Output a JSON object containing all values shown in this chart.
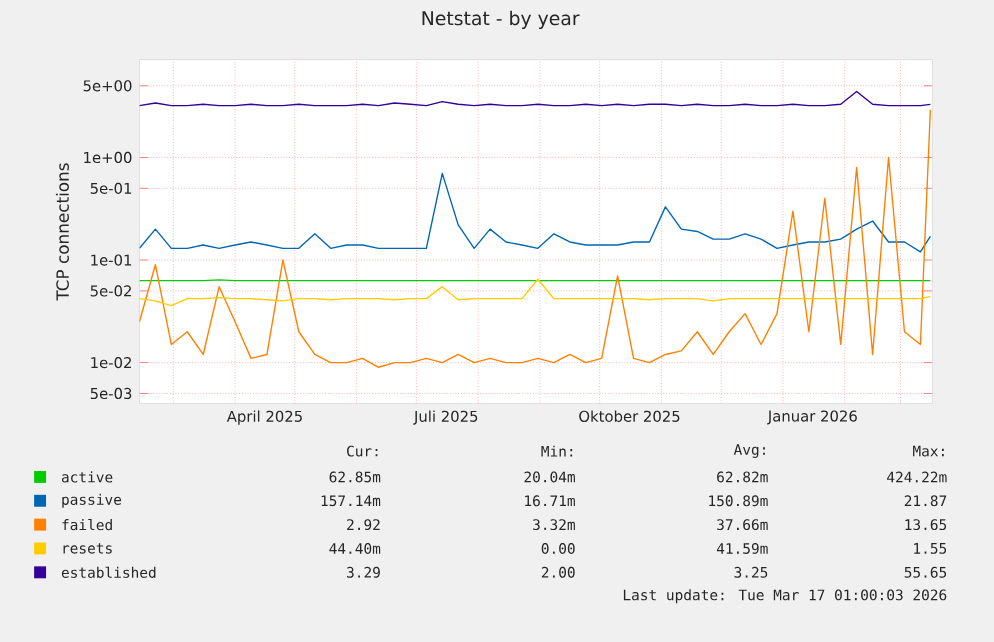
{
  "chart_data": {
    "type": "line",
    "title": "Netstat - by year",
    "ylabel": "TCP connections",
    "x": [
      "2025-02-12",
      "2025-02-20",
      "2025-02-28",
      "2025-03-08",
      "2025-03-16",
      "2025-03-24",
      "2025-04-01",
      "2025-04-09",
      "2025-04-17",
      "2025-04-25",
      "2025-05-03",
      "2025-05-11",
      "2025-05-19",
      "2025-05-27",
      "2025-06-04",
      "2025-06-12",
      "2025-06-20",
      "2025-06-28",
      "2025-07-06",
      "2025-07-14",
      "2025-07-22",
      "2025-07-30",
      "2025-08-07",
      "2025-08-15",
      "2025-08-23",
      "2025-08-31",
      "2025-09-08",
      "2025-09-16",
      "2025-09-24",
      "2025-10-02",
      "2025-10-10",
      "2025-10-18",
      "2025-10-26",
      "2025-11-03",
      "2025-11-11",
      "2025-11-19",
      "2025-11-27",
      "2025-12-05",
      "2025-12-13",
      "2025-12-21",
      "2025-12-29",
      "2026-01-06",
      "2026-01-14",
      "2026-01-22",
      "2026-01-30",
      "2026-02-07",
      "2026-02-15",
      "2026-02-23",
      "2026-03-03",
      "2026-03-11",
      "2026-03-16"
    ],
    "series": [
      {
        "name": "active",
        "color": "#00cc00",
        "values": [
          0.063,
          0.063,
          0.063,
          0.063,
          0.063,
          0.064,
          0.063,
          0.063,
          0.063,
          0.063,
          0.063,
          0.063,
          0.063,
          0.063,
          0.063,
          0.063,
          0.063,
          0.063,
          0.063,
          0.063,
          0.063,
          0.063,
          0.063,
          0.063,
          0.063,
          0.063,
          0.063,
          0.063,
          0.063,
          0.063,
          0.063,
          0.063,
          0.063,
          0.063,
          0.063,
          0.063,
          0.063,
          0.063,
          0.063,
          0.063,
          0.063,
          0.063,
          0.063,
          0.063,
          0.063,
          0.063,
          0.063,
          0.063,
          0.063,
          0.063,
          0.063
        ]
      },
      {
        "name": "passive",
        "color": "#0066b3",
        "values": [
          0.13,
          0.2,
          0.13,
          0.13,
          0.14,
          0.13,
          0.14,
          0.15,
          0.14,
          0.13,
          0.13,
          0.18,
          0.13,
          0.14,
          0.14,
          0.13,
          0.13,
          0.13,
          0.13,
          0.7,
          0.22,
          0.13,
          0.2,
          0.15,
          0.14,
          0.13,
          0.18,
          0.15,
          0.14,
          0.14,
          0.14,
          0.15,
          0.15,
          0.33,
          0.2,
          0.19,
          0.16,
          0.16,
          0.18,
          0.16,
          0.13,
          0.14,
          0.15,
          0.15,
          0.16,
          0.2,
          0.24,
          0.15,
          0.15,
          0.12,
          0.17
        ]
      },
      {
        "name": "failed",
        "color": "#ff8000",
        "values": [
          0.025,
          0.09,
          0.015,
          0.02,
          0.012,
          0.055,
          0.025,
          0.011,
          0.012,
          0.1,
          0.02,
          0.012,
          0.01,
          0.01,
          0.011,
          0.009,
          0.01,
          0.01,
          0.011,
          0.01,
          0.012,
          0.01,
          0.011,
          0.01,
          0.01,
          0.011,
          0.01,
          0.012,
          0.01,
          0.011,
          0.07,
          0.011,
          0.01,
          0.012,
          0.013,
          0.02,
          0.012,
          0.02,
          0.03,
          0.015,
          0.03,
          0.3,
          0.02,
          0.4,
          0.015,
          0.8,
          0.012,
          1.0,
          0.02,
          0.015,
          2.92
        ]
      },
      {
        "name": "resets",
        "color": "#ffcc00",
        "values": [
          0.042,
          0.04,
          0.036,
          0.042,
          0.042,
          0.043,
          0.042,
          0.042,
          0.041,
          0.04,
          0.042,
          0.042,
          0.041,
          0.042,
          0.042,
          0.042,
          0.041,
          0.042,
          0.042,
          0.055,
          0.041,
          0.042,
          0.042,
          0.042,
          0.042,
          0.065,
          0.042,
          0.042,
          0.042,
          0.042,
          0.042,
          0.042,
          0.041,
          0.042,
          0.042,
          0.042,
          0.04,
          0.042,
          0.042,
          0.042,
          0.042,
          0.042,
          0.042,
          0.042,
          0.042,
          0.042,
          0.042,
          0.042,
          0.042,
          0.042,
          0.044
        ]
      },
      {
        "name": "established",
        "color": "#330099",
        "values": [
          3.2,
          3.4,
          3.2,
          3.2,
          3.3,
          3.2,
          3.2,
          3.3,
          3.2,
          3.2,
          3.3,
          3.2,
          3.2,
          3.2,
          3.3,
          3.2,
          3.4,
          3.3,
          3.2,
          3.5,
          3.3,
          3.2,
          3.3,
          3.2,
          3.2,
          3.3,
          3.2,
          3.2,
          3.3,
          3.2,
          3.3,
          3.2,
          3.3,
          3.3,
          3.2,
          3.3,
          3.2,
          3.2,
          3.3,
          3.2,
          3.2,
          3.3,
          3.2,
          3.2,
          3.3,
          4.4,
          3.3,
          3.2,
          3.2,
          3.2,
          3.29
        ]
      }
    ],
    "xlim": [
      "2025-02-12",
      "2026-03-17"
    ],
    "xticks": [
      {
        "value": "2025-03-01",
        "label": null
      },
      {
        "value": "2025-04-01",
        "label": null
      },
      {
        "value": "2025-04-16",
        "label": "April 2025"
      },
      {
        "value": "2025-05-01",
        "label": null
      },
      {
        "value": "2025-06-01",
        "label": null
      },
      {
        "value": "2025-07-01",
        "label": null
      },
      {
        "value": "2025-07-16",
        "label": "Juli 2025"
      },
      {
        "value": "2025-08-01",
        "label": null
      },
      {
        "value": "2025-09-01",
        "label": null
      },
      {
        "value": "2025-10-01",
        "label": null
      },
      {
        "value": "2025-10-16",
        "label": "Oktober 2025"
      },
      {
        "value": "2025-11-01",
        "label": null
      },
      {
        "value": "2025-12-01",
        "label": null
      },
      {
        "value": "2026-01-01",
        "label": null
      },
      {
        "value": "2026-01-16",
        "label": "Januar 2026"
      },
      {
        "value": "2026-02-01",
        "label": null
      },
      {
        "value": "2026-03-01",
        "label": null
      }
    ],
    "ylim": [
      0.004,
      9
    ],
    "yticks": [
      {
        "value": 0.005,
        "label": "5e-03"
      },
      {
        "value": 0.01,
        "label": "1e-02"
      },
      {
        "value": 0.05,
        "label": "5e-02"
      },
      {
        "value": 0.1,
        "label": "1e-01"
      },
      {
        "value": 0.5,
        "label": "5e-01"
      },
      {
        "value": 1,
        "label": "1e+00"
      },
      {
        "value": 5,
        "label": "5e+00"
      }
    ],
    "log": true,
    "grid": true,
    "legend": "bottom",
    "annotations": [
      "Cur:",
      "Min:",
      "Avg:",
      "Max:",
      "62.85m",
      "20.04m",
      "62.82m",
      "424.22m",
      "157.14m",
      "16.71m",
      "150.89m",
      "21.87",
      "2.92",
      "3.32m",
      "37.66m",
      "13.65",
      "44.40m",
      "0.00",
      "41.59m",
      "1.55",
      "3.29",
      "2.00",
      "3.25",
      "55.65",
      "Last update: Tue Mar 17 01:00:03 2026"
    ]
  }
}
